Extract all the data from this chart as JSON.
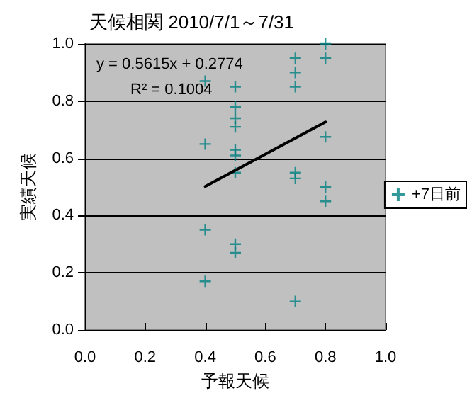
{
  "chart_data": {
    "type": "scatter",
    "title": "天候相関 2010/7/1～7/31",
    "xlabel": "予報天候",
    "ylabel": "実績天候",
    "series": [
      {
        "name": "+7日前",
        "color": "#008080",
        "marker": "cross",
        "x": [
          0.4,
          0.4,
          0.4,
          0.4,
          0.5,
          0.5,
          0.5,
          0.5,
          0.5,
          0.5,
          0.5,
          0.5,
          0.5,
          0.7,
          0.7,
          0.7,
          0.7,
          0.7,
          0.7,
          0.8,
          0.8,
          0.8,
          0.8,
          0.8
        ],
        "values": [
          0.87,
          0.65,
          0.35,
          0.17,
          0.85,
          0.78,
          0.74,
          0.71,
          0.63,
          0.61,
          0.55,
          0.3,
          0.27,
          0.95,
          0.9,
          0.85,
          0.55,
          0.53,
          0.1,
          1.0,
          0.95,
          0.675,
          0.5,
          0.45
        ]
      },
      {
        "type": "line",
        "color": "#000000",
        "marker": "none",
        "x": [
          0.4,
          0.8
        ],
        "values": [
          0.502,
          0.727
        ]
      }
    ],
    "xlim": [
      0,
      1
    ],
    "ylim": [
      0,
      1
    ],
    "xticks": [
      {
        "value": 0,
        "label": "0.0"
      },
      {
        "value": 0.2,
        "label": "0.2"
      },
      {
        "value": 0.4,
        "label": "0.4"
      },
      {
        "value": 0.6,
        "label": "0.6"
      },
      {
        "value": 0.8,
        "label": "0.8"
      },
      {
        "value": 1,
        "label": "1.0"
      }
    ],
    "yticks": [
      {
        "value": 0,
        "label": "0.0"
      },
      {
        "value": 0.2,
        "label": "0.2"
      },
      {
        "value": 0.4,
        "label": "0.4"
      },
      {
        "value": 0.6,
        "label": "0.6"
      },
      {
        "value": 0.8,
        "label": "0.8"
      },
      {
        "value": 1,
        "label": "1.0"
      }
    ],
    "grid": "y",
    "legend": "right",
    "annotations": [
      "y = 0.5615x + 0.2774",
      "R² = 0.1004"
    ]
  }
}
